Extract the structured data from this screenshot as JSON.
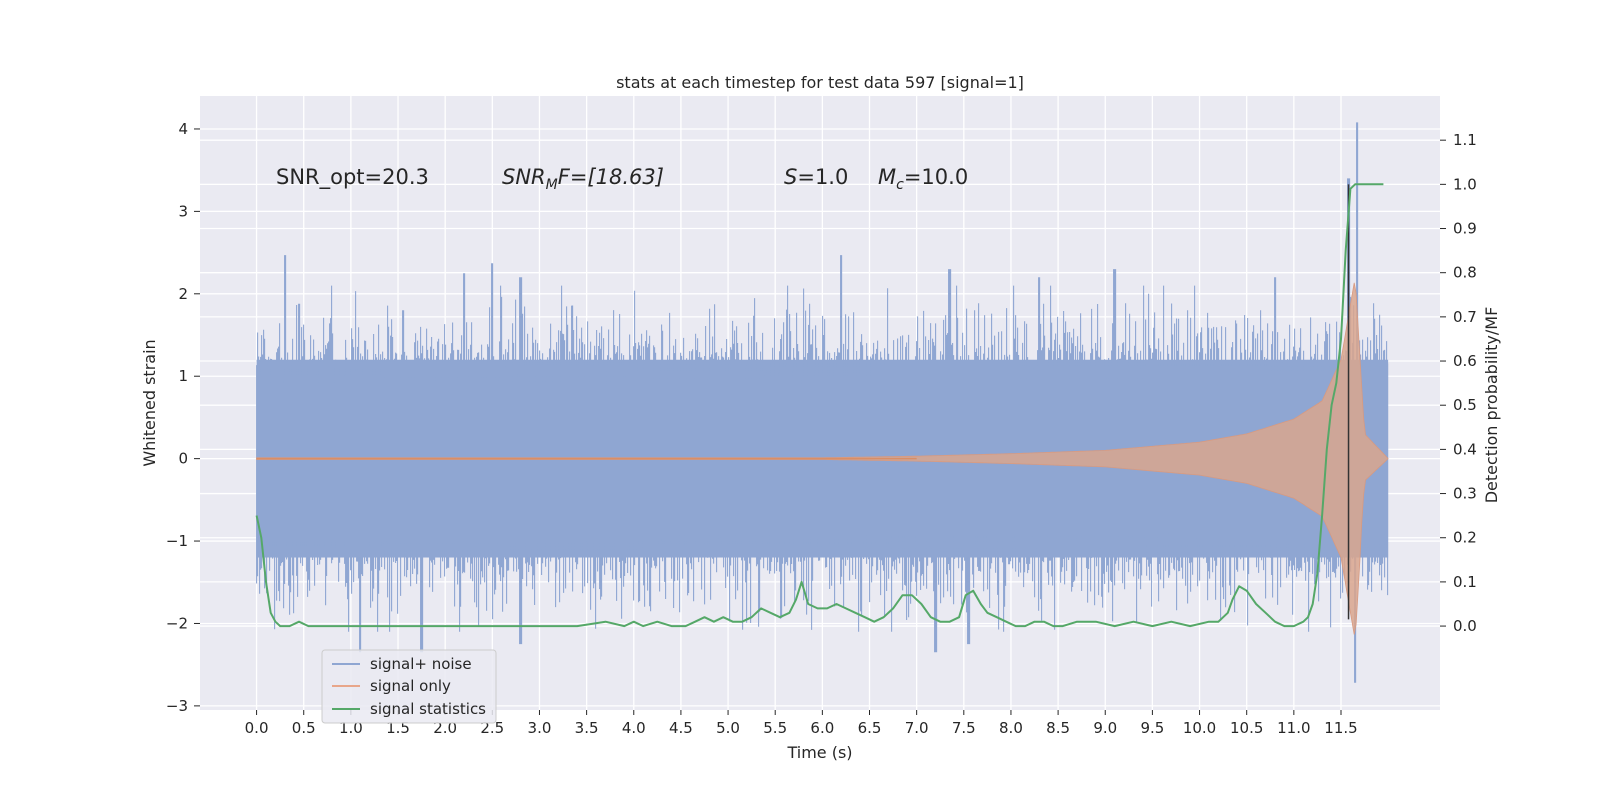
{
  "chart_data": {
    "type": "line",
    "title": "stats at each timestep for test data 597 [signal=1]",
    "xlabel": "Time (s)",
    "ylabel": "Whitened strain",
    "y2label": "Detection probability/MF",
    "xlim": [
      -0.6,
      12.55
    ],
    "ylim": [
      -3.05,
      4.4
    ],
    "y2lim": [
      -0.19,
      1.2
    ],
    "x_ticks": [
      0.0,
      0.5,
      1.0,
      1.5,
      2.0,
      2.5,
      3.0,
      3.5,
      4.0,
      4.5,
      5.0,
      5.5,
      6.0,
      6.5,
      7.0,
      7.5,
      8.0,
      8.5,
      9.0,
      9.5,
      10.0,
      10.5,
      11.0,
      11.5
    ],
    "x_tick_labels": [
      "0.0",
      "0.5",
      "1.0",
      "1.5",
      "2.0",
      "2.5",
      "3.0",
      "3.5",
      "4.0",
      "4.5",
      "5.0",
      "5.5",
      "6.0",
      "6.5",
      "7.0",
      "7.5",
      "8.0",
      "8.5",
      "9.0",
      "9.5",
      "10.0",
      "10.5",
      "11.0",
      "11.5"
    ],
    "y_ticks": [
      -3,
      -2,
      -1,
      0,
      1,
      2,
      3,
      4
    ],
    "y_tick_labels": [
      "−3",
      "−2",
      "−1",
      "0",
      "1",
      "2",
      "3",
      "4"
    ],
    "y2_ticks": [
      0.0,
      0.1,
      0.2,
      0.3,
      0.4,
      0.5,
      0.6,
      0.7,
      0.8,
      0.9,
      1.0,
      1.1
    ],
    "y2_tick_labels": [
      "0.0",
      "0.1",
      "0.2",
      "0.3",
      "0.4",
      "0.5",
      "0.6",
      "0.7",
      "0.8",
      "0.9",
      "1.0",
      "1.1"
    ],
    "annotations": {
      "snr_opt": "SNR_opt=20.3",
      "snr_mf_base": "SNR",
      "snr_mf_sub": "M",
      "snr_mf_rest": "F=[18.63]",
      "s_sym": "S",
      "s_val": "=1.0",
      "mc_sym": "M",
      "mc_sub": "c",
      "mc_val": "=10.0"
    },
    "legend_position": "lower-left",
    "series": [
      {
        "name": "signal+ noise",
        "color": "#8fa6d2",
        "envelope_description": "dense whitened noise, roughly -1.8 to 1.8, peaks up to 4.1 near t=11.67",
        "peaks": [
          [
            0.3,
            2.47
          ],
          [
            0.45,
            1.88
          ],
          [
            1.55,
            1.8
          ],
          [
            2.2,
            2.25
          ],
          [
            2.5,
            2.37
          ],
          [
            2.8,
            2.2
          ],
          [
            6.2,
            2.47
          ],
          [
            7.35,
            2.3
          ],
          [
            8.3,
            2.2
          ],
          [
            9.1,
            2.3
          ],
          [
            10.8,
            2.2
          ],
          [
            11.58,
            3.4
          ],
          [
            11.67,
            4.08
          ]
        ],
        "troughs": [
          [
            1.1,
            -2.35
          ],
          [
            1.75,
            -2.35
          ],
          [
            2.8,
            -2.25
          ],
          [
            7.2,
            -2.35
          ],
          [
            7.55,
            -2.25
          ],
          [
            11.65,
            -2.72
          ]
        ]
      },
      {
        "name": "signal only",
        "color": "#dd8452",
        "description": "chirp, amplitude ~0 until t~7, growing to ~2.2 at t=11.7, then ringdown",
        "amplitude_points": [
          [
            0.0,
            0.01
          ],
          [
            6.0,
            0.01
          ],
          [
            7.0,
            0.03
          ],
          [
            8.0,
            0.06
          ],
          [
            9.0,
            0.1
          ],
          [
            10.0,
            0.2
          ],
          [
            10.5,
            0.3
          ],
          [
            11.0,
            0.48
          ],
          [
            11.3,
            0.7
          ],
          [
            11.5,
            1.2
          ],
          [
            11.65,
            2.2
          ],
          [
            11.75,
            0.3
          ],
          [
            12.0,
            0.0
          ]
        ]
      },
      {
        "name": "signal statistics",
        "color": "#55a868",
        "axis": "right",
        "x": [
          0.0,
          0.05,
          0.1,
          0.15,
          0.2,
          0.25,
          0.35,
          0.45,
          0.55,
          0.8,
          1.2,
          1.6,
          2.0,
          2.5,
          2.8,
          3.1,
          3.4,
          3.7,
          3.9,
          4.0,
          4.1,
          4.25,
          4.4,
          4.55,
          4.65,
          4.75,
          4.85,
          4.95,
          5.05,
          5.15,
          5.25,
          5.35,
          5.45,
          5.55,
          5.65,
          5.72,
          5.78,
          5.85,
          5.95,
          6.05,
          6.15,
          6.25,
          6.35,
          6.45,
          6.55,
          6.65,
          6.75,
          6.85,
          6.95,
          7.05,
          7.15,
          7.25,
          7.35,
          7.45,
          7.52,
          7.6,
          7.68,
          7.75,
          7.85,
          7.95,
          8.05,
          8.15,
          8.25,
          8.35,
          8.45,
          8.55,
          8.7,
          8.9,
          9.1,
          9.3,
          9.5,
          9.7,
          9.9,
          10.1,
          10.2,
          10.3,
          10.35,
          10.42,
          10.5,
          10.6,
          10.7,
          10.8,
          10.9,
          11.0,
          11.1,
          11.15,
          11.2,
          11.25,
          11.3,
          11.35,
          11.4,
          11.45,
          11.5,
          11.55,
          11.6,
          11.65,
          11.7,
          11.8,
          11.9,
          11.95
        ],
        "y": [
          0.25,
          0.2,
          0.1,
          0.03,
          0.01,
          0.0,
          0.0,
          0.01,
          0.0,
          0.0,
          0.0,
          0.0,
          0.0,
          0.0,
          0.0,
          0.0,
          0.0,
          0.01,
          0.0,
          0.01,
          0.0,
          0.01,
          0.0,
          0.0,
          0.01,
          0.02,
          0.01,
          0.02,
          0.01,
          0.01,
          0.02,
          0.04,
          0.03,
          0.02,
          0.03,
          0.06,
          0.1,
          0.05,
          0.04,
          0.04,
          0.05,
          0.04,
          0.03,
          0.02,
          0.01,
          0.02,
          0.04,
          0.07,
          0.07,
          0.05,
          0.02,
          0.01,
          0.01,
          0.02,
          0.07,
          0.08,
          0.05,
          0.03,
          0.02,
          0.01,
          0.0,
          0.0,
          0.01,
          0.01,
          0.0,
          0.0,
          0.01,
          0.01,
          0.0,
          0.01,
          0.0,
          0.01,
          0.0,
          0.01,
          0.01,
          0.03,
          0.06,
          0.09,
          0.08,
          0.05,
          0.03,
          0.01,
          0.0,
          0.0,
          0.01,
          0.02,
          0.05,
          0.12,
          0.25,
          0.4,
          0.5,
          0.55,
          0.65,
          0.85,
          0.99,
          1.0,
          1.0,
          1.0,
          1.0,
          1.0
        ]
      }
    ],
    "vertical_line": {
      "x": 11.58,
      "color": "#333333"
    }
  }
}
